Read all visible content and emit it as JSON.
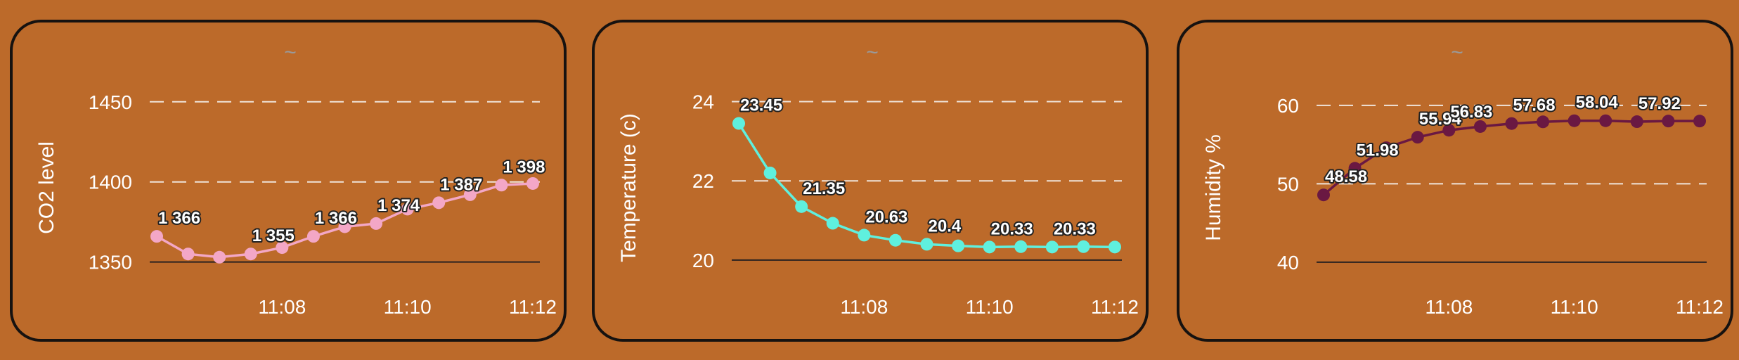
{
  "chart_data": [
    {
      "type": "line",
      "title": "~",
      "ylabel": "CO2 level",
      "color": "#f3a7c6",
      "ylim": [
        1345,
        1460
      ],
      "yticks": [
        1350,
        1400,
        1450
      ],
      "xticks": [
        {
          "label": "11:08",
          "x": 4
        },
        {
          "label": "11:10",
          "x": 8
        },
        {
          "label": "11:12",
          "x": 12
        }
      ],
      "x": [
        0,
        1,
        2,
        3,
        4,
        5,
        6,
        7,
        8,
        9,
        10,
        11,
        12
      ],
      "series": [
        {
          "values": [
            1366,
            1355,
            1353,
            1355,
            1359,
            1366,
            1372,
            1374,
            1383,
            1387,
            1392,
            1398,
            1399
          ],
          "labels": [
            "1 366",
            "",
            "",
            "1 355",
            "",
            "1 366",
            "",
            "1 374",
            "",
            "1 387",
            "",
            "1 398",
            ""
          ]
        }
      ],
      "grid": "dashed-horizontal"
    },
    {
      "type": "line",
      "title": "~",
      "ylabel": "Temperature (c)",
      "color": "#5ff0de",
      "ylim": [
        19.75,
        24.4
      ],
      "yticks": [
        20,
        22,
        24
      ],
      "xticks": [
        {
          "label": "11:08",
          "x": 4
        },
        {
          "label": "11:10",
          "x": 8
        },
        {
          "label": "11:12",
          "x": 12
        }
      ],
      "x": [
        0,
        1,
        2,
        3,
        4,
        5,
        6,
        7,
        8,
        9,
        10,
        11,
        12
      ],
      "series": [
        {
          "values": [
            23.45,
            22.2,
            21.35,
            20.93,
            20.63,
            20.5,
            20.4,
            20.36,
            20.33,
            20.34,
            20.33,
            20.34,
            20.33
          ],
          "labels": [
            "23.45",
            "",
            "21.35",
            "",
            "20.63",
            "",
            "20.4",
            "",
            "20.33",
            "",
            "20.33",
            "",
            ""
          ]
        }
      ],
      "grid": "dashed-horizontal"
    },
    {
      "type": "line",
      "title": "~",
      "ylabel": "Humidity %",
      "color": "#6a1842",
      "ylim": [
        39,
        62.5
      ],
      "yticks": [
        40,
        50,
        60
      ],
      "xticks": [
        {
          "label": "11:08",
          "x": 4
        },
        {
          "label": "11:10",
          "x": 8
        },
        {
          "label": "11:12",
          "x": 12
        }
      ],
      "x": [
        0,
        1,
        2,
        3,
        4,
        5,
        6,
        7,
        8,
        9,
        10,
        11,
        12
      ],
      "series": [
        {
          "values": [
            48.58,
            51.98,
            54.6,
            55.94,
            56.83,
            57.3,
            57.68,
            57.9,
            58.04,
            58.04,
            57.92,
            58.0,
            58.0
          ],
          "labels": [
            "48.58",
            "51.98",
            "",
            "55.94",
            "56.83",
            "",
            "57.68",
            "",
            "58.04",
            "",
            "57.92",
            "",
            ""
          ]
        }
      ],
      "grid": "dashed-horizontal"
    }
  ]
}
